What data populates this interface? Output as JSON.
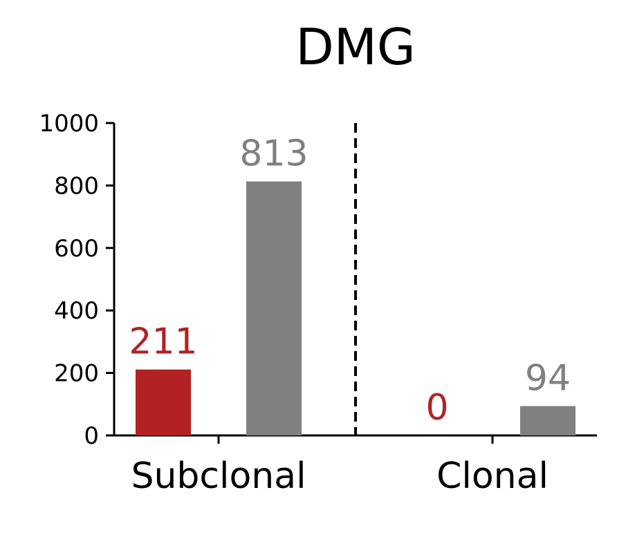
{
  "chart_data": {
    "type": "bar",
    "title": "DMG",
    "categories": [
      "Subclonal",
      "Clonal"
    ],
    "series": [
      {
        "values": [
          211,
          0
        ],
        "color": "#b22222"
      },
      {
        "values": [
          813,
          94
        ],
        "color": "#808080"
      }
    ],
    "ylim": [
      0,
      1000
    ],
    "yticks": [
      0,
      200,
      400,
      600,
      800,
      1000
    ],
    "data_labels": [
      [
        "211",
        "0"
      ],
      [
        "813",
        "94"
      ]
    ],
    "separator": "dashed-vertical-line",
    "grid": false,
    "legend": "none",
    "axis_color": "#000000"
  }
}
